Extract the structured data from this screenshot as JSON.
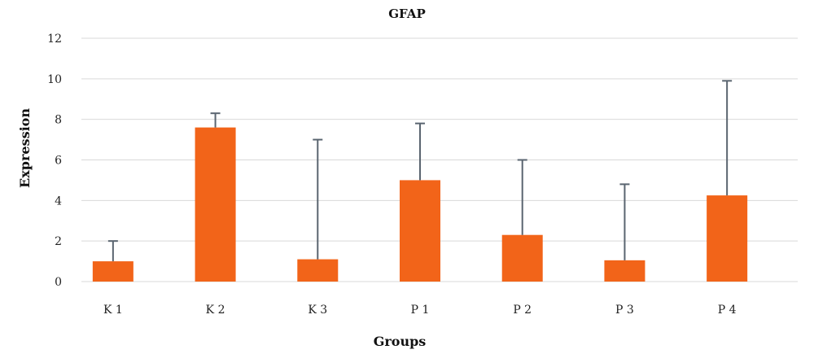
{
  "chart_data": {
    "type": "bar",
    "title": "GFAP",
    "xlabel": "Groups",
    "ylabel": "Expression",
    "ylim": [
      0,
      12
    ],
    "yticks": [
      0,
      2,
      4,
      6,
      8,
      10,
      12
    ],
    "grid": true,
    "legend": "none",
    "bar_color": "#f26419",
    "error_color": "#5a6570",
    "categories": [
      "K 1",
      "K 2",
      "K 3",
      "P 1",
      "P 2",
      "P 3",
      "P 4"
    ],
    "values": [
      1.0,
      7.6,
      1.1,
      5.0,
      2.3,
      1.05,
      4.25
    ],
    "error_upper": [
      2.0,
      8.3,
      7.0,
      7.8,
      6.0,
      4.8,
      9.9
    ]
  }
}
